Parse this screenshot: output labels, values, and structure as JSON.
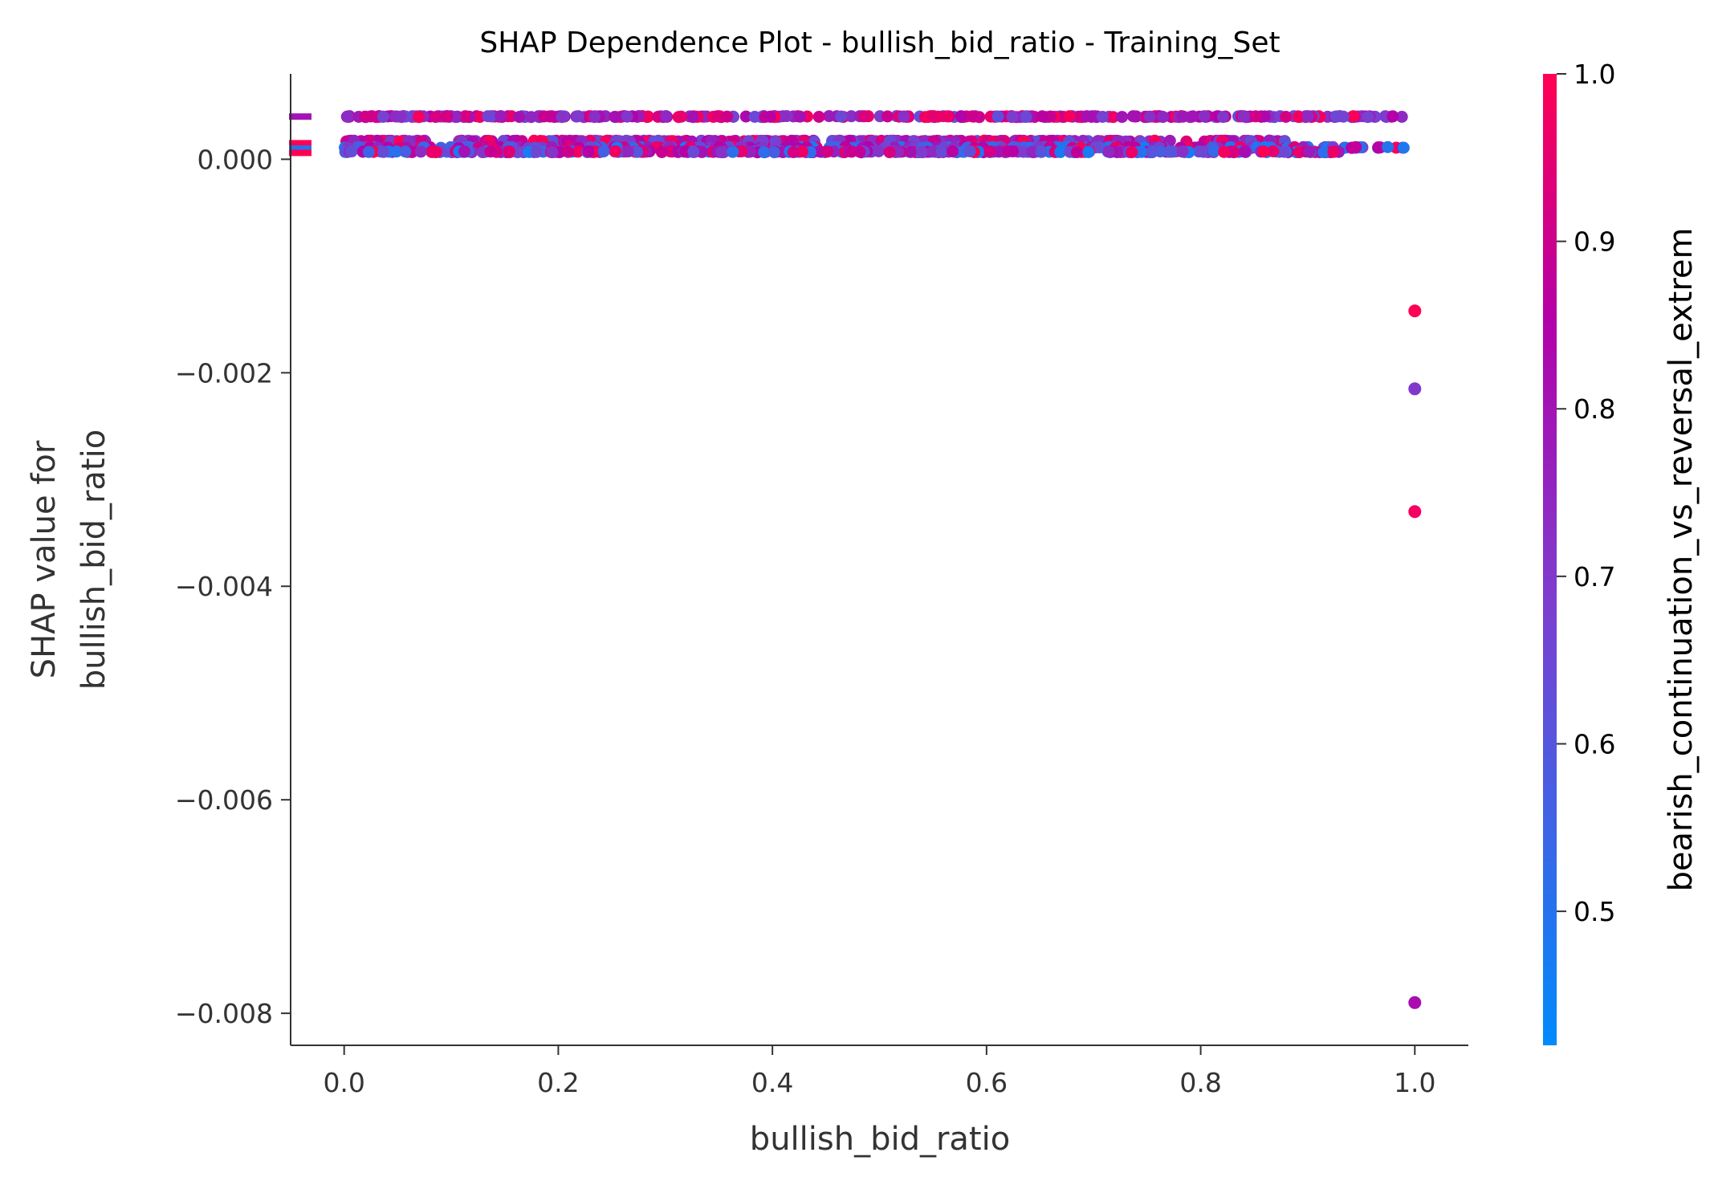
{
  "chart_data": {
    "type": "scatter",
    "title": "SHAP Dependence Plot - bullish_bid_ratio - Training_Set",
    "xlabel": "bullish_bid_ratio",
    "ylabel_line1": "SHAP value for",
    "ylabel_line2": "bullish_bid_ratio",
    "xlim": [
      -0.05,
      1.05
    ],
    "ylim": [
      -0.0083,
      0.0008
    ],
    "xticks": [
      0.0,
      0.2,
      0.4,
      0.6,
      0.8,
      1.0
    ],
    "xtick_labels": [
      "0.0",
      "0.2",
      "0.4",
      "0.6",
      "0.8",
      "1.0"
    ],
    "yticks": [
      0.0,
      -0.002,
      -0.004,
      -0.006,
      -0.008
    ],
    "ytick_labels": [
      "0.000",
      "−0.002",
      "−0.004",
      "−0.006",
      "−0.008"
    ],
    "grid": false,
    "colorbar": {
      "label": "bearish_continuation_vs_reversal_extrem",
      "range": [
        0.42,
        1.0
      ],
      "ticks": [
        0.5,
        0.6,
        0.7,
        0.8,
        0.9,
        1.0
      ],
      "tick_labels": [
        "0.5",
        "0.6",
        "0.7",
        "0.8",
        "0.9",
        "1.0"
      ],
      "low_color": "#008afb",
      "mid_color": "#7b3fd0",
      "high_color": "#ff0052"
    },
    "bands": [
      {
        "y": 0.0004,
        "x_from": 0.0,
        "x_to": 0.99,
        "color_min": 0.62,
        "color_max": 1.0
      },
      {
        "y": 0.00017,
        "x_from": 0.0,
        "x_to": 0.88,
        "color_min": 0.62,
        "color_max": 1.0
      },
      {
        "y": 0.00011,
        "x_from": 0.0,
        "x_to": 0.99,
        "color_min": 0.45,
        "color_max": 1.0
      },
      {
        "y": 7e-05,
        "x_from": 0.0,
        "x_to": 0.93,
        "color_min": 0.45,
        "color_max": 1.0
      }
    ],
    "outliers": [
      {
        "x": 1.0,
        "y": -0.00142,
        "c": 1.0
      },
      {
        "x": 1.0,
        "y": -0.00215,
        "c": 0.7
      },
      {
        "x": 1.0,
        "y": -0.0033,
        "c": 0.98
      },
      {
        "x": 1.0,
        "y": -0.0079,
        "c": 0.82
      }
    ],
    "side_markers": [
      {
        "y": 0.0004,
        "c": 0.8
      },
      {
        "y": 0.00015,
        "c": 1.0
      },
      {
        "y": 0.0001,
        "c": 0.5
      },
      {
        "y": 6e-05,
        "c": 1.0
      }
    ]
  }
}
